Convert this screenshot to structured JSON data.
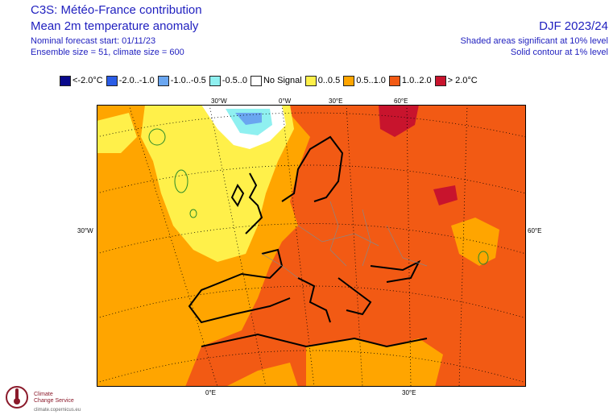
{
  "header": {
    "title_line1": "C3S: Météo-France contribution",
    "title_line2": "Mean 2m temperature anomaly",
    "forecast_start": "Nominal forecast start: 01/11/23",
    "ensemble": "Ensemble size = 51, climate size = 600",
    "season": "DJF 2023/24",
    "sig_note1": "Shaded areas significant at 10% level",
    "sig_note2": "Solid contour at 1% level"
  },
  "legend": [
    {
      "label": "<-2.0°C",
      "color": "#0a0a8c"
    },
    {
      "label": "-2.0..-1.0",
      "color": "#2b5de6"
    },
    {
      "label": "-1.0..-0.5",
      "color": "#6aa6f0"
    },
    {
      "label": "-0.5..0",
      "color": "#8ff0f0"
    },
    {
      "label": "No Signal",
      "color": "#ffffff"
    },
    {
      "label": "0..0.5",
      "color": "#fff04a"
    },
    {
      "label": "0.5..1.0",
      "color": "#ffa500"
    },
    {
      "label": "1.0..2.0",
      "color": "#f25a14"
    },
    {
      "label": "> 2.0°C",
      "color": "#c8142d"
    }
  ],
  "axes": {
    "top": [
      "30°W",
      "0°W",
      "30°E",
      "60°E"
    ],
    "left": "30°W",
    "right": "60°E",
    "bottom": [
      "0°E",
      "30°E"
    ]
  },
  "logo": {
    "line1": "Climate",
    "line2": "Change Service",
    "url": "climate.copernicus.eu"
  },
  "colors": {
    "text_blue": "#1f1fbf",
    "yellow": "#fff04a",
    "orange": "#ffa500",
    "red_orange": "#f25a14",
    "dark_red": "#c8142d"
  }
}
